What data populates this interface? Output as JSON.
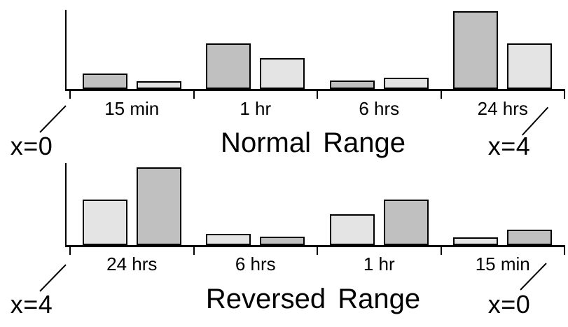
{
  "figure": {
    "background": "#ffffff",
    "axis_color": "#000000",
    "bar_outline_color": "#000000",
    "dark_bar_fill": "#c0c0c0",
    "light_bar_fill": "#e4e4e4"
  },
  "chart_data": [
    {
      "type": "bar",
      "title": "Normal Range",
      "categories": [
        "15 min",
        "1 hr",
        "6 hrs",
        "24 hrs"
      ],
      "series": [
        {
          "name": "dark-gray-bars",
          "color": "#c0c0c0",
          "values": [
            0.2,
            0.59,
            0.11,
            1.0
          ]
        },
        {
          "name": "light-gray-bars",
          "color": "#e4e4e4",
          "values": [
            0.1,
            0.4,
            0.14,
            0.59
          ]
        }
      ],
      "annotations": {
        "axis_start": "x=0",
        "axis_end": "x=4"
      },
      "xlabel": "",
      "ylabel": "",
      "legend": "none",
      "grid": false,
      "notes": "No numeric y-axis shown; values are relative bar heights (tallest bar = 1.00). Dark bar drawn left of light bar in each pair."
    },
    {
      "type": "bar",
      "title": "Reversed Range",
      "categories": [
        "24 hrs",
        "6 hrs",
        "1 hr",
        "15 min"
      ],
      "series": [
        {
          "name": "light-gray-bars",
          "color": "#e4e4e4",
          "values": [
            0.59,
            0.14,
            0.4,
            0.1
          ]
        },
        {
          "name": "dark-gray-bars",
          "color": "#c0c0c0",
          "values": [
            1.0,
            0.11,
            0.59,
            0.2
          ]
        }
      ],
      "annotations": {
        "axis_start": "x=4",
        "axis_end": "x=0"
      },
      "xlabel": "",
      "ylabel": "",
      "legend": "none",
      "grid": false,
      "notes": "Mirror image of top panel: category order and bar order within each pair are reversed (light bar left, dark bar right)."
    }
  ]
}
